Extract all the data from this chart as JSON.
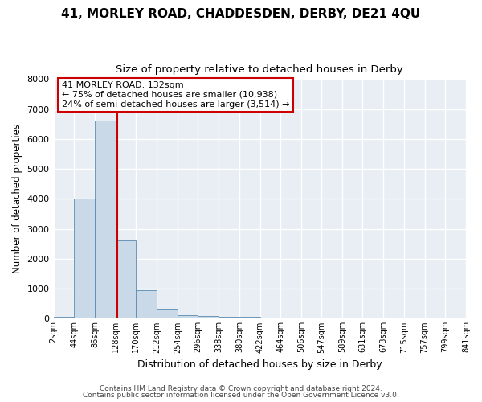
{
  "title": "41, MORLEY ROAD, CHADDESDEN, DERBY, DE21 4QU",
  "subtitle": "Size of property relative to detached houses in Derby",
  "xlabel": "Distribution of detached houses by size in Derby",
  "ylabel": "Number of detached properties",
  "bin_edges": [
    2,
    44,
    86,
    128,
    170,
    212,
    254,
    296,
    338,
    380,
    422,
    464,
    506,
    547,
    589,
    631,
    673,
    715,
    757,
    799,
    841
  ],
  "bin_counts": [
    70,
    4000,
    6600,
    2620,
    960,
    330,
    130,
    80,
    55,
    55,
    0,
    0,
    0,
    0,
    0,
    0,
    0,
    0,
    0,
    0
  ],
  "bar_color": "#c9d9e8",
  "bar_edge_color": "#5a8ab0",
  "vline_x": 132,
  "vline_color": "#cc0000",
  "annotation_title": "41 MORLEY ROAD: 132sqm",
  "annotation_line1": "← 75% of detached houses are smaller (10,938)",
  "annotation_line2": "24% of semi-detached houses are larger (3,514) →",
  "annotation_box_color": "#cc0000",
  "ylim": [
    0,
    8000
  ],
  "xlim": [
    2,
    841
  ],
  "tick_labels": [
    "2sqm",
    "44sqm",
    "86sqm",
    "128sqm",
    "170sqm",
    "212sqm",
    "254sqm",
    "296sqm",
    "338sqm",
    "380sqm",
    "422sqm",
    "464sqm",
    "506sqm",
    "547sqm",
    "589sqm",
    "631sqm",
    "673sqm",
    "715sqm",
    "757sqm",
    "799sqm",
    "841sqm"
  ],
  "footer1": "Contains HM Land Registry data © Crown copyright and database right 2024.",
  "footer2": "Contains public sector information licensed under the Open Government Licence v3.0.",
  "bg_color": "#ffffff",
  "plot_bg_color": "#e8eef4",
  "grid_color": "#ffffff",
  "title_fontsize": 11,
  "subtitle_fontsize": 9.5,
  "xlabel_fontsize": 9,
  "ylabel_fontsize": 8.5,
  "tick_fontsize": 7,
  "footer_fontsize": 6.5
}
